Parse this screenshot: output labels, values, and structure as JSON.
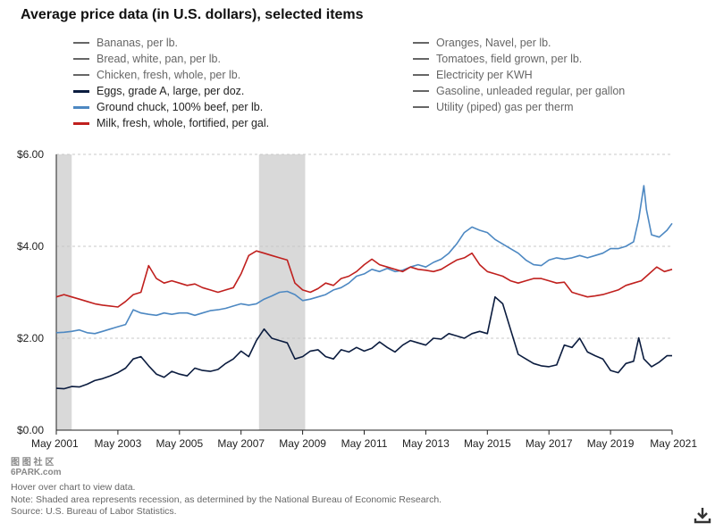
{
  "title": "Average price data (in U.S. dollars), selected items",
  "legend_left": [
    {
      "label": "Bananas, per lb.",
      "active": false
    },
    {
      "label": "Bread, white, pan, per lb.",
      "active": false
    },
    {
      "label": "Chicken, fresh, whole, per lb.",
      "active": false
    },
    {
      "label": "Eggs, grade A, large, per doz.",
      "active": true,
      "color": "#0b1c3f"
    },
    {
      "label": "Ground chuck, 100% beef, per lb.",
      "active": true,
      "color": "#4d88c2"
    },
    {
      "label": "Milk, fresh, whole, fortified, per gal.",
      "active": true,
      "color": "#c0201e"
    }
  ],
  "legend_right": [
    {
      "label": "Oranges, Navel, per lb.",
      "active": false
    },
    {
      "label": "Tomatoes, field grown, per lb.",
      "active": false
    },
    {
      "label": "Electricity per KWH",
      "active": false
    },
    {
      "label": "Gasoline, unleaded regular, per gallon",
      "active": false
    },
    {
      "label": "Utility (piped) gas per therm",
      "active": false
    }
  ],
  "colors": {
    "inactive": "#666666",
    "grid": "#c8c8c8",
    "recession": "#d9d9d9"
  },
  "chart_data": {
    "type": "line",
    "title": "Average price data (in U.S. dollars), selected items",
    "ylim": [
      0,
      6
    ],
    "yticks": [
      0,
      2,
      4,
      6
    ],
    "ytick_labels": [
      "$0.00",
      "$2.00",
      "$4.00",
      "$6.00"
    ],
    "xlim": [
      "2001-05",
      "2021-05"
    ],
    "xticks": [
      "May 2001",
      "May 2003",
      "May 2005",
      "May 2007",
      "May 2009",
      "May 2011",
      "May 2013",
      "May 2015",
      "May 2017",
      "May 2019",
      "May 2021"
    ],
    "recessions": [
      [
        "2001-03",
        "2001-11"
      ],
      [
        "2007-12",
        "2009-06"
      ]
    ],
    "series": [
      {
        "name": "Eggs, grade A, large, per doz.",
        "color": "#0b1c3f",
        "points": [
          [
            "2001-05",
            0.91
          ],
          [
            "2001-08",
            0.9
          ],
          [
            "2001-11",
            0.95
          ],
          [
            "2002-02",
            0.94
          ],
          [
            "2002-05",
            1.0
          ],
          [
            "2002-08",
            1.08
          ],
          [
            "2002-11",
            1.12
          ],
          [
            "2003-02",
            1.18
          ],
          [
            "2003-05",
            1.25
          ],
          [
            "2003-08",
            1.35
          ],
          [
            "2003-11",
            1.55
          ],
          [
            "2004-02",
            1.6
          ],
          [
            "2004-05",
            1.4
          ],
          [
            "2004-08",
            1.22
          ],
          [
            "2004-11",
            1.15
          ],
          [
            "2005-02",
            1.28
          ],
          [
            "2005-05",
            1.22
          ],
          [
            "2005-08",
            1.18
          ],
          [
            "2005-11",
            1.35
          ],
          [
            "2006-02",
            1.3
          ],
          [
            "2006-05",
            1.28
          ],
          [
            "2006-08",
            1.32
          ],
          [
            "2006-11",
            1.45
          ],
          [
            "2007-02",
            1.55
          ],
          [
            "2007-05",
            1.72
          ],
          [
            "2007-08",
            1.6
          ],
          [
            "2007-11",
            1.95
          ],
          [
            "2008-02",
            2.2
          ],
          [
            "2008-05",
            2.0
          ],
          [
            "2008-08",
            1.95
          ],
          [
            "2008-11",
            1.9
          ],
          [
            "2009-02",
            1.55
          ],
          [
            "2009-05",
            1.6
          ],
          [
            "2009-08",
            1.72
          ],
          [
            "2009-11",
            1.75
          ],
          [
            "2010-02",
            1.6
          ],
          [
            "2010-05",
            1.55
          ],
          [
            "2010-08",
            1.75
          ],
          [
            "2010-11",
            1.7
          ],
          [
            "2011-02",
            1.8
          ],
          [
            "2011-05",
            1.72
          ],
          [
            "2011-08",
            1.78
          ],
          [
            "2011-11",
            1.92
          ],
          [
            "2012-02",
            1.8
          ],
          [
            "2012-05",
            1.7
          ],
          [
            "2012-08",
            1.85
          ],
          [
            "2012-11",
            1.95
          ],
          [
            "2013-02",
            1.9
          ],
          [
            "2013-05",
            1.85
          ],
          [
            "2013-08",
            2.0
          ],
          [
            "2013-11",
            1.98
          ],
          [
            "2014-02",
            2.1
          ],
          [
            "2014-05",
            2.05
          ],
          [
            "2014-08",
            2.0
          ],
          [
            "2014-11",
            2.1
          ],
          [
            "2015-02",
            2.15
          ],
          [
            "2015-05",
            2.1
          ],
          [
            "2015-08",
            2.9
          ],
          [
            "2015-11",
            2.75
          ],
          [
            "2016-02",
            2.2
          ],
          [
            "2016-05",
            1.65
          ],
          [
            "2016-08",
            1.55
          ],
          [
            "2016-11",
            1.45
          ],
          [
            "2017-02",
            1.4
          ],
          [
            "2017-05",
            1.38
          ],
          [
            "2017-08",
            1.42
          ],
          [
            "2017-11",
            1.85
          ],
          [
            "2018-02",
            1.8
          ],
          [
            "2018-05",
            2.0
          ],
          [
            "2018-08",
            1.7
          ],
          [
            "2018-11",
            1.62
          ],
          [
            "2019-02",
            1.55
          ],
          [
            "2019-05",
            1.3
          ],
          [
            "2019-08",
            1.25
          ],
          [
            "2019-11",
            1.45
          ],
          [
            "2020-02",
            1.5
          ],
          [
            "2020-04",
            2.01
          ],
          [
            "2020-06",
            1.55
          ],
          [
            "2020-09",
            1.38
          ],
          [
            "2020-12",
            1.48
          ],
          [
            "2021-03",
            1.62
          ],
          [
            "2021-05",
            1.62
          ]
        ]
      },
      {
        "name": "Ground chuck, 100% beef, per lb.",
        "color": "#4d88c2",
        "points": [
          [
            "2001-05",
            2.12
          ],
          [
            "2001-08",
            2.13
          ],
          [
            "2001-11",
            2.15
          ],
          [
            "2002-02",
            2.18
          ],
          [
            "2002-05",
            2.12
          ],
          [
            "2002-08",
            2.1
          ],
          [
            "2002-11",
            2.15
          ],
          [
            "2003-02",
            2.2
          ],
          [
            "2003-05",
            2.25
          ],
          [
            "2003-08",
            2.3
          ],
          [
            "2003-11",
            2.62
          ],
          [
            "2004-02",
            2.55
          ],
          [
            "2004-05",
            2.52
          ],
          [
            "2004-08",
            2.5
          ],
          [
            "2004-11",
            2.55
          ],
          [
            "2005-02",
            2.52
          ],
          [
            "2005-05",
            2.55
          ],
          [
            "2005-08",
            2.55
          ],
          [
            "2005-11",
            2.5
          ],
          [
            "2006-02",
            2.55
          ],
          [
            "2006-05",
            2.6
          ],
          [
            "2006-08",
            2.62
          ],
          [
            "2006-11",
            2.65
          ],
          [
            "2007-02",
            2.7
          ],
          [
            "2007-05",
            2.75
          ],
          [
            "2007-08",
            2.72
          ],
          [
            "2007-11",
            2.75
          ],
          [
            "2008-02",
            2.85
          ],
          [
            "2008-05",
            2.92
          ],
          [
            "2008-08",
            3.0
          ],
          [
            "2008-11",
            3.02
          ],
          [
            "2009-02",
            2.95
          ],
          [
            "2009-05",
            2.82
          ],
          [
            "2009-08",
            2.85
          ],
          [
            "2009-11",
            2.9
          ],
          [
            "2010-02",
            2.95
          ],
          [
            "2010-05",
            3.05
          ],
          [
            "2010-08",
            3.1
          ],
          [
            "2010-11",
            3.2
          ],
          [
            "2011-02",
            3.35
          ],
          [
            "2011-05",
            3.4
          ],
          [
            "2011-08",
            3.5
          ],
          [
            "2011-11",
            3.45
          ],
          [
            "2012-02",
            3.52
          ],
          [
            "2012-05",
            3.45
          ],
          [
            "2012-08",
            3.48
          ],
          [
            "2012-11",
            3.55
          ],
          [
            "2013-02",
            3.6
          ],
          [
            "2013-05",
            3.55
          ],
          [
            "2013-08",
            3.65
          ],
          [
            "2013-11",
            3.72
          ],
          [
            "2014-02",
            3.85
          ],
          [
            "2014-05",
            4.05
          ],
          [
            "2014-08",
            4.3
          ],
          [
            "2014-11",
            4.42
          ],
          [
            "2015-02",
            4.35
          ],
          [
            "2015-05",
            4.3
          ],
          [
            "2015-08",
            4.15
          ],
          [
            "2015-11",
            4.05
          ],
          [
            "2016-02",
            3.95
          ],
          [
            "2016-05",
            3.85
          ],
          [
            "2016-08",
            3.7
          ],
          [
            "2016-11",
            3.6
          ],
          [
            "2017-02",
            3.58
          ],
          [
            "2017-05",
            3.7
          ],
          [
            "2017-08",
            3.75
          ],
          [
            "2017-11",
            3.72
          ],
          [
            "2018-02",
            3.75
          ],
          [
            "2018-05",
            3.8
          ],
          [
            "2018-08",
            3.75
          ],
          [
            "2018-11",
            3.8
          ],
          [
            "2019-02",
            3.85
          ],
          [
            "2019-05",
            3.95
          ],
          [
            "2019-08",
            3.95
          ],
          [
            "2019-11",
            4.0
          ],
          [
            "2020-02",
            4.1
          ],
          [
            "2020-04",
            4.6
          ],
          [
            "2020-06",
            5.32
          ],
          [
            "2020-07",
            4.8
          ],
          [
            "2020-09",
            4.25
          ],
          [
            "2020-12",
            4.2
          ],
          [
            "2021-03",
            4.35
          ],
          [
            "2021-05",
            4.5
          ]
        ]
      },
      {
        "name": "Milk, fresh, whole, fortified, per gal.",
        "color": "#c0201e",
        "points": [
          [
            "2001-05",
            2.9
          ],
          [
            "2001-08",
            2.95
          ],
          [
            "2001-11",
            2.9
          ],
          [
            "2002-02",
            2.85
          ],
          [
            "2002-05",
            2.8
          ],
          [
            "2002-08",
            2.75
          ],
          [
            "2002-11",
            2.72
          ],
          [
            "2003-02",
            2.7
          ],
          [
            "2003-05",
            2.68
          ],
          [
            "2003-08",
            2.8
          ],
          [
            "2003-11",
            2.95
          ],
          [
            "2004-02",
            3.0
          ],
          [
            "2004-05",
            3.58
          ],
          [
            "2004-08",
            3.3
          ],
          [
            "2004-11",
            3.2
          ],
          [
            "2005-02",
            3.25
          ],
          [
            "2005-05",
            3.2
          ],
          [
            "2005-08",
            3.15
          ],
          [
            "2005-11",
            3.18
          ],
          [
            "2006-02",
            3.1
          ],
          [
            "2006-05",
            3.05
          ],
          [
            "2006-08",
            3.0
          ],
          [
            "2006-11",
            3.05
          ],
          [
            "2007-02",
            3.1
          ],
          [
            "2007-05",
            3.4
          ],
          [
            "2007-08",
            3.8
          ],
          [
            "2007-11",
            3.9
          ],
          [
            "2008-02",
            3.85
          ],
          [
            "2008-05",
            3.8
          ],
          [
            "2008-08",
            3.75
          ],
          [
            "2008-11",
            3.7
          ],
          [
            "2009-02",
            3.2
          ],
          [
            "2009-05",
            3.05
          ],
          [
            "2009-08",
            3.0
          ],
          [
            "2009-11",
            3.08
          ],
          [
            "2010-02",
            3.2
          ],
          [
            "2010-05",
            3.15
          ],
          [
            "2010-08",
            3.3
          ],
          [
            "2010-11",
            3.35
          ],
          [
            "2011-02",
            3.45
          ],
          [
            "2011-05",
            3.6
          ],
          [
            "2011-08",
            3.72
          ],
          [
            "2011-11",
            3.6
          ],
          [
            "2012-02",
            3.55
          ],
          [
            "2012-05",
            3.5
          ],
          [
            "2012-08",
            3.45
          ],
          [
            "2012-11",
            3.55
          ],
          [
            "2013-02",
            3.5
          ],
          [
            "2013-05",
            3.48
          ],
          [
            "2013-08",
            3.45
          ],
          [
            "2013-11",
            3.5
          ],
          [
            "2014-02",
            3.6
          ],
          [
            "2014-05",
            3.7
          ],
          [
            "2014-08",
            3.75
          ],
          [
            "2014-11",
            3.85
          ],
          [
            "2015-02",
            3.6
          ],
          [
            "2015-05",
            3.45
          ],
          [
            "2015-08",
            3.4
          ],
          [
            "2015-11",
            3.35
          ],
          [
            "2016-02",
            3.25
          ],
          [
            "2016-05",
            3.2
          ],
          [
            "2016-08",
            3.25
          ],
          [
            "2016-11",
            3.3
          ],
          [
            "2017-02",
            3.3
          ],
          [
            "2017-05",
            3.25
          ],
          [
            "2017-08",
            3.2
          ],
          [
            "2017-11",
            3.22
          ],
          [
            "2018-02",
            3.0
          ],
          [
            "2018-05",
            2.95
          ],
          [
            "2018-08",
            2.9
          ],
          [
            "2018-11",
            2.92
          ],
          [
            "2019-02",
            2.95
          ],
          [
            "2019-05",
            3.0
          ],
          [
            "2019-08",
            3.05
          ],
          [
            "2019-11",
            3.15
          ],
          [
            "2020-02",
            3.2
          ],
          [
            "2020-05",
            3.25
          ],
          [
            "2020-08",
            3.4
          ],
          [
            "2020-11",
            3.55
          ],
          [
            "2021-02",
            3.45
          ],
          [
            "2021-05",
            3.5
          ]
        ]
      }
    ]
  },
  "notes": [
    "Hover over chart to view data.",
    "Note: Shaded area represents recession, as determined by the National Bureau of Economic Research.",
    "Source: U.S. Bureau of Labor Statistics."
  ],
  "watermark": {
    "line1": "图 图 社 区",
    "line2": "6PARK.com"
  },
  "download_icon": "download-icon"
}
